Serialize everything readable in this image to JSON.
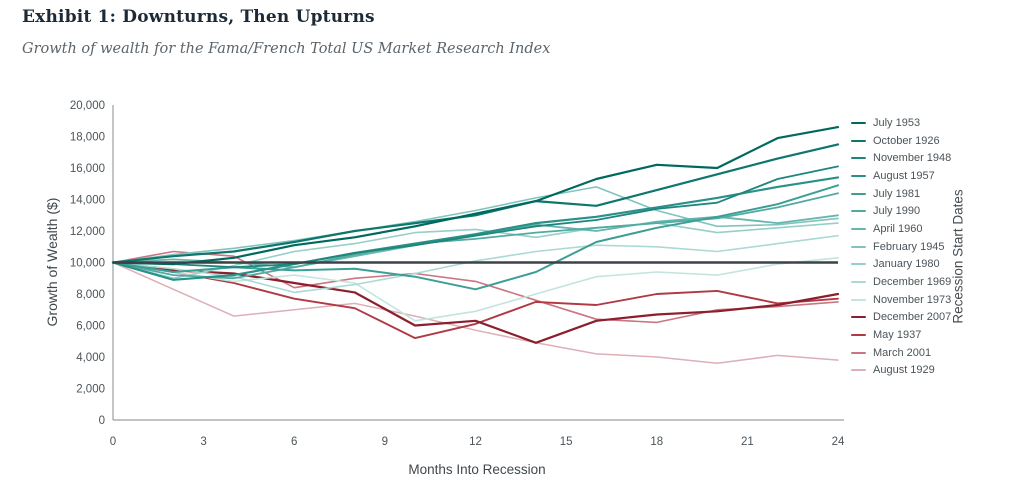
{
  "header": {
    "title": "Exhibit 1: Downturns, Then Upturns",
    "subtitle": "Growth of wealth for the Fama/French Total US Market Research Index"
  },
  "chart_data": {
    "type": "line",
    "xlabel": "Months Into Recession",
    "ylabel": "Growth of Wealth ($)",
    "legend_title": "Recession Start Dates",
    "xlim": [
      0,
      24
    ],
    "ylim": [
      0,
      20000
    ],
    "x_ticks": [
      0,
      3,
      6,
      9,
      12,
      15,
      18,
      21,
      24
    ],
    "y_ticks": [
      "0",
      "2,000",
      "4,000",
      "6,000",
      "8,000",
      "10,000",
      "12,000",
      "14,000",
      "16,000",
      "18,000",
      "20,000"
    ],
    "grid": false,
    "legend_position": "right",
    "baseline_value": 10000,
    "baseline_color": "#3c4247",
    "axis_color": "#9aa0a4",
    "x": [
      0,
      2,
      4,
      6,
      8,
      10,
      12,
      14,
      16,
      18,
      20,
      22,
      24
    ],
    "series": [
      {
        "name": "July 1953",
        "color": "#00695f",
        "width": 2.2,
        "values": [
          10000,
          9900,
          10300,
          11100,
          11600,
          12300,
          13100,
          13900,
          15300,
          16200,
          16000,
          17900,
          18600
        ]
      },
      {
        "name": "October 1926",
        "color": "#0d776e",
        "width": 2.2,
        "values": [
          10000,
          10400,
          10700,
          11300,
          12000,
          12500,
          13000,
          13900,
          13600,
          14600,
          15600,
          16600,
          17500
        ]
      },
      {
        "name": "November 1948",
        "color": "#1f867c",
        "width": 1.8,
        "values": [
          10000,
          9900,
          9700,
          9900,
          10600,
          11100,
          11700,
          12300,
          12700,
          13400,
          13800,
          15300,
          16100
        ]
      },
      {
        "name": "August 1957",
        "color": "#2a9188",
        "width": 2.2,
        "values": [
          10000,
          8900,
          9200,
          9900,
          10600,
          11200,
          11800,
          12500,
          12900,
          13500,
          14100,
          14800,
          15400
        ]
      },
      {
        "name": "July 1981",
        "color": "#3d9e95",
        "width": 2.0,
        "values": [
          10000,
          9400,
          9700,
          9500,
          9600,
          9100,
          8300,
          9400,
          11300,
          12200,
          12900,
          13700,
          14900
        ]
      },
      {
        "name": "July 1990",
        "color": "#52aba2",
        "width": 1.8,
        "values": [
          10000,
          9200,
          9000,
          9700,
          10500,
          11200,
          11500,
          11900,
          12200,
          12500,
          12800,
          13500,
          14400
        ]
      },
      {
        "name": "April 1960",
        "color": "#66b6ae",
        "width": 1.8,
        "values": [
          10000,
          10200,
          10000,
          9700,
          10400,
          11100,
          11800,
          12400,
          12000,
          12600,
          12900,
          12500,
          13000
        ]
      },
      {
        "name": "February 1945",
        "color": "#82c4bd",
        "width": 1.6,
        "values": [
          10000,
          10500,
          10900,
          11400,
          12000,
          12600,
          13300,
          14100,
          14800,
          13300,
          12300,
          12400,
          12800
        ]
      },
      {
        "name": "January 1980",
        "color": "#97cfc8",
        "width": 1.6,
        "values": [
          10000,
          9000,
          9800,
          10700,
          11200,
          11900,
          12100,
          11600,
          12200,
          12500,
          11900,
          12200,
          12500
        ]
      },
      {
        "name": "December 1969",
        "color": "#abd9d3",
        "width": 1.6,
        "values": [
          10000,
          9600,
          9100,
          8100,
          8600,
          9300,
          10100,
          10700,
          11100,
          11000,
          10700,
          11200,
          11700
        ]
      },
      {
        "name": "November 1973",
        "color": "#c4e4e0",
        "width": 1.6,
        "values": [
          10000,
          9400,
          8800,
          9200,
          8700,
          6300,
          6900,
          8000,
          9100,
          9400,
          9200,
          9900,
          10300
        ]
      },
      {
        "name": "December 2007",
        "color": "#8c1f2d",
        "width": 2.2,
        "values": [
          10000,
          9500,
          9300,
          8700,
          8100,
          6000,
          6300,
          4900,
          6300,
          6700,
          6900,
          7300,
          8000
        ]
      },
      {
        "name": "May 1937",
        "color": "#b03945",
        "width": 1.9,
        "values": [
          10000,
          9400,
          8700,
          7700,
          7100,
          5200,
          6100,
          7500,
          7300,
          8000,
          8200,
          7400,
          7700
        ]
      },
      {
        "name": "March 2001",
        "color": "#c97683",
        "width": 1.6,
        "values": [
          10000,
          10700,
          10400,
          8400,
          9000,
          9300,
          8800,
          7600,
          6400,
          6200,
          7000,
          7200,
          7500
        ]
      },
      {
        "name": "August 1929",
        "color": "#ddafb6",
        "width": 1.5,
        "values": [
          10000,
          8300,
          6600,
          7000,
          7400,
          6600,
          5700,
          4900,
          4200,
          4000,
          3600,
          4100,
          3800
        ]
      }
    ]
  }
}
